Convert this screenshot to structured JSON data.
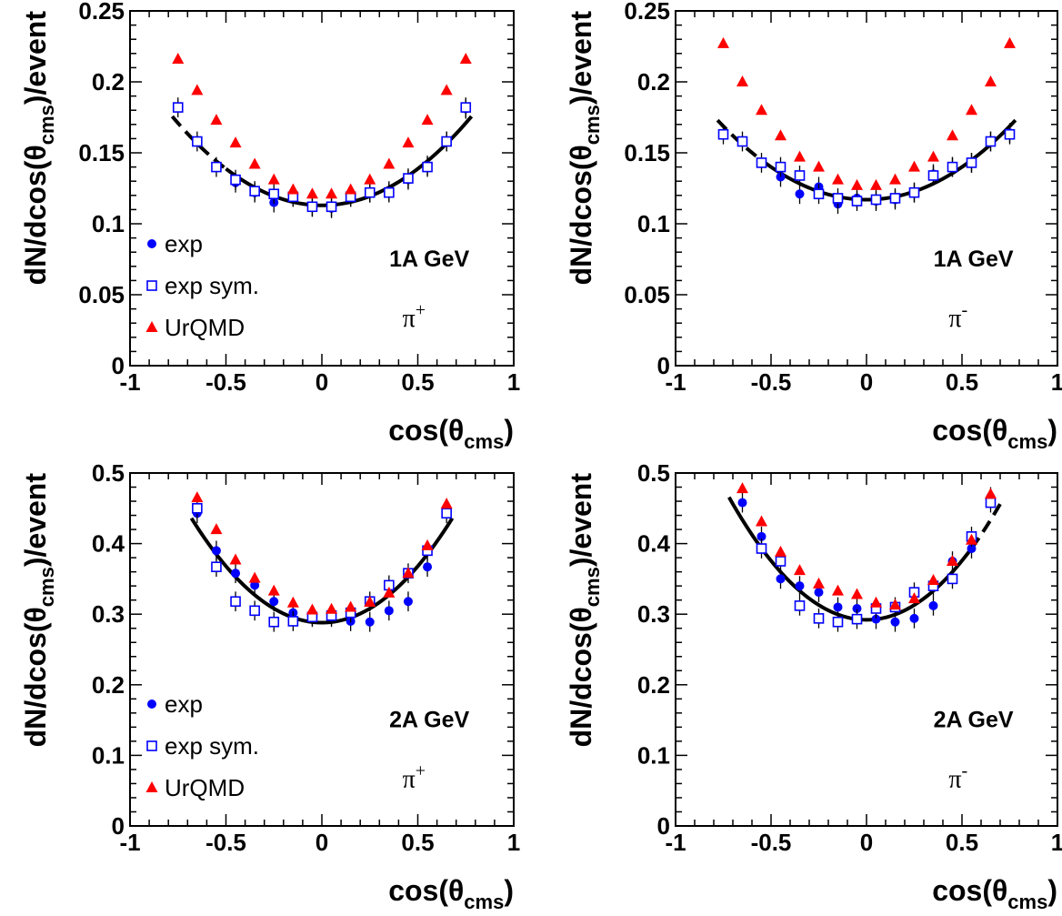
{
  "chart_data": [
    {
      "type": "scatter",
      "energy_label": "1A GeV",
      "particle": "π",
      "particle_sup": "+",
      "xlabel": "cos(θ",
      "xlabel_sub": "cms",
      "xlabel_close": ")",
      "ylabel": "dN/dcos(θ",
      "ylabel_sub": "cms",
      "ylabel_close": ")/event",
      "xlim": [
        -1,
        1
      ],
      "ylim": [
        0,
        0.25
      ],
      "xticks": [
        "-1",
        "-0.5",
        "0",
        "0.5",
        "1"
      ],
      "yticks": [
        "0",
        "0.05",
        "0.1",
        "0.15",
        "0.2",
        "0.25"
      ],
      "legend": {
        "position": "left",
        "entries": [
          "exp",
          "exp sym.",
          "UrQMD"
        ]
      },
      "fit": {
        "label": "",
        "c0": 0.113,
        "c2": 0.103,
        "xrange": [
          -0.78,
          0.78
        ],
        "dashed_below": -0.5,
        "dashed_above": null
      },
      "series": [
        {
          "name": "exp",
          "marker": "circle",
          "color": "#0000ff",
          "x": [
            -0.45,
            -0.35,
            -0.25,
            -0.15,
            -0.05,
            0.05,
            0.15,
            0.25,
            0.35,
            0.45,
            0.55,
            0.65,
            0.75
          ],
          "y": [
            0.129,
            0.122,
            0.115,
            0.119,
            0.112,
            0.111,
            0.119,
            0.122,
            0.123,
            0.131,
            0.141,
            0.158,
            0.181
          ]
        },
        {
          "name": "exp sym.",
          "marker": "open-square",
          "color": "#0000ff",
          "x": [
            -0.75,
            -0.65,
            -0.55,
            -0.45,
            -0.35,
            -0.25,
            -0.15,
            -0.05,
            0.05,
            0.15,
            0.25,
            0.35,
            0.45,
            0.55,
            0.65,
            0.75
          ],
          "y": [
            0.182,
            0.158,
            0.14,
            0.131,
            0.123,
            0.121,
            0.119,
            0.112,
            0.112,
            0.119,
            0.122,
            0.122,
            0.132,
            0.14,
            0.158,
            0.182
          ]
        },
        {
          "name": "UrQMD",
          "marker": "triangle",
          "color": "#ff0000",
          "x": [
            -0.75,
            -0.65,
            -0.55,
            -0.45,
            -0.35,
            -0.25,
            -0.15,
            -0.05,
            0.05,
            0.15,
            0.25,
            0.35,
            0.45,
            0.55,
            0.65,
            0.75
          ],
          "y": [
            0.216,
            0.194,
            0.173,
            0.157,
            0.142,
            0.131,
            0.124,
            0.121,
            0.121,
            0.124,
            0.131,
            0.142,
            0.157,
            0.173,
            0.194,
            0.216
          ]
        }
      ]
    },
    {
      "type": "scatter",
      "energy_label": "1A GeV",
      "particle": "π",
      "particle_sup": "-",
      "xlabel": "cos(θ",
      "xlabel_sub": "cms",
      "xlabel_close": ")",
      "ylabel": "dN/dcos(θ",
      "ylabel_sub": "cms",
      "ylabel_close": ")/event",
      "xlim": [
        -1,
        1
      ],
      "ylim": [
        0,
        0.25
      ],
      "xticks": [
        "-1",
        "-0.5",
        "0",
        "0.5",
        "1"
      ],
      "yticks": [
        "0",
        "0.05",
        "0.1",
        "0.15",
        "0.2",
        "0.25"
      ],
      "legend": null,
      "fit": {
        "label": "",
        "c0": 0.117,
        "c2": 0.092,
        "xrange": [
          -0.78,
          0.78
        ],
        "dashed_below": -0.5,
        "dashed_above": null
      },
      "series": [
        {
          "name": "exp",
          "marker": "circle",
          "color": "#0000ff",
          "x": [
            -0.45,
            -0.35,
            -0.25,
            -0.15,
            -0.05,
            0.05,
            0.15,
            0.25,
            0.35,
            0.45,
            0.55,
            0.65,
            0.75
          ],
          "y": [
            0.133,
            0.121,
            0.126,
            0.114,
            0.118,
            0.116,
            0.117,
            0.122,
            0.135,
            0.14,
            0.143,
            0.158,
            0.164
          ]
        },
        {
          "name": "exp sym.",
          "marker": "open-square",
          "color": "#0000ff",
          "x": [
            -0.75,
            -0.65,
            -0.55,
            -0.45,
            -0.35,
            -0.25,
            -0.15,
            -0.05,
            0.05,
            0.15,
            0.25,
            0.35,
            0.45,
            0.55,
            0.65,
            0.75
          ],
          "y": [
            0.163,
            0.158,
            0.143,
            0.14,
            0.134,
            0.121,
            0.118,
            0.116,
            0.117,
            0.118,
            0.122,
            0.134,
            0.14,
            0.143,
            0.158,
            0.163
          ]
        },
        {
          "name": "UrQMD",
          "marker": "triangle",
          "color": "#ff0000",
          "x": [
            -0.75,
            -0.65,
            -0.55,
            -0.45,
            -0.35,
            -0.25,
            -0.15,
            -0.05,
            0.05,
            0.15,
            0.25,
            0.35,
            0.45,
            0.55,
            0.65,
            0.75
          ],
          "y": [
            0.227,
            0.2,
            0.18,
            0.162,
            0.147,
            0.14,
            0.131,
            0.127,
            0.127,
            0.131,
            0.14,
            0.147,
            0.162,
            0.18,
            0.2,
            0.227
          ]
        }
      ]
    },
    {
      "type": "scatter",
      "energy_label": "2A GeV",
      "particle": "π",
      "particle_sup": "+",
      "xlabel": "cos(θ",
      "xlabel_sub": "cms",
      "xlabel_close": ")",
      "ylabel": "dN/dcos(θ",
      "ylabel_sub": "cms",
      "ylabel_close": ")/event",
      "xlim": [
        -1,
        1
      ],
      "ylim": [
        0,
        0.5
      ],
      "xticks": [
        "-1",
        "-0.5",
        "0",
        "0.5",
        "1"
      ],
      "yticks": [
        "0",
        "0.1",
        "0.2",
        "0.3",
        "0.4",
        "0.5"
      ],
      "legend": {
        "position": "left",
        "entries": [
          "exp",
          "exp sym.",
          "UrQMD"
        ]
      },
      "fit": {
        "label": "",
        "c0": 0.288,
        "c2": 0.32,
        "xrange": [
          -0.68,
          0.68
        ],
        "dashed_below": null,
        "dashed_above": null
      },
      "series": [
        {
          "name": "exp",
          "marker": "circle",
          "color": "#0000ff",
          "x": [
            -0.65,
            -0.55,
            -0.45,
            -0.35,
            -0.25,
            -0.15,
            -0.05,
            0.05,
            0.15,
            0.25,
            0.35,
            0.45,
            0.55,
            0.65
          ],
          "y": [
            0.443,
            0.39,
            0.358,
            0.341,
            0.318,
            0.302,
            0.298,
            0.296,
            0.29,
            0.289,
            0.305,
            0.318,
            0.367,
            0.45
          ]
        },
        {
          "name": "exp sym.",
          "marker": "open-square",
          "color": "#0000ff",
          "x": [
            -0.65,
            -0.55,
            -0.45,
            -0.35,
            -0.25,
            -0.15,
            -0.05,
            0.05,
            0.15,
            0.25,
            0.35,
            0.45,
            0.55,
            0.65
          ],
          "y": [
            0.45,
            0.367,
            0.318,
            0.305,
            0.289,
            0.29,
            0.296,
            0.298,
            0.302,
            0.318,
            0.341,
            0.358,
            0.39,
            0.443
          ]
        },
        {
          "name": "UrQMD",
          "marker": "triangle",
          "color": "#ff0000",
          "x": [
            -0.65,
            -0.55,
            -0.45,
            -0.35,
            -0.25,
            -0.15,
            -0.05,
            0.05,
            0.15,
            0.25,
            0.35,
            0.45,
            0.55,
            0.65
          ],
          "y": [
            0.465,
            0.42,
            0.377,
            0.351,
            0.333,
            0.316,
            0.306,
            0.307,
            0.31,
            0.317,
            0.33,
            0.358,
            0.397,
            0.456
          ]
        }
      ]
    },
    {
      "type": "scatter",
      "energy_label": "2A GeV",
      "particle": "π",
      "particle_sup": "-",
      "xlabel": "cos(θ",
      "xlabel_sub": "cms",
      "xlabel_close": ")",
      "ylabel": "dN/dcos(θ",
      "ylabel_sub": "cms",
      "ylabel_close": ")/event",
      "xlim": [
        -1,
        1
      ],
      "ylim": [
        0,
        0.5
      ],
      "xticks": [
        "-1",
        "-0.5",
        "0",
        "0.5",
        "1"
      ],
      "yticks": [
        "0",
        "0.1",
        "0.2",
        "0.3",
        "0.4",
        "0.5"
      ],
      "legend": null,
      "fit": {
        "label": "",
        "c0": 0.292,
        "c2": 0.335,
        "xrange": [
          -0.72,
          0.7
        ],
        "dashed_below": null,
        "dashed_above": 0.55
      },
      "series": [
        {
          "name": "exp",
          "marker": "circle",
          "color": "#0000ff",
          "x": [
            -0.65,
            -0.55,
            -0.45,
            -0.35,
            -0.25,
            -0.15,
            -0.05,
            0.05,
            0.15,
            0.25,
            0.35,
            0.45,
            0.55,
            0.65
          ],
          "y": [
            0.458,
            0.41,
            0.35,
            0.34,
            0.331,
            0.31,
            0.308,
            0.293,
            0.289,
            0.294,
            0.312,
            0.375,
            0.393,
            0.466
          ]
        },
        {
          "name": "exp sym.",
          "marker": "open-square",
          "color": "#0000ff",
          "x": [
            -0.55,
            -0.45,
            -0.35,
            -0.25,
            -0.15,
            -0.05,
            0.05,
            0.15,
            0.25,
            0.35,
            0.45,
            0.55,
            0.65
          ],
          "y": [
            0.393,
            0.375,
            0.312,
            0.294,
            0.289,
            0.293,
            0.308,
            0.31,
            0.331,
            0.34,
            0.35,
            0.41,
            0.458
          ]
        },
        {
          "name": "UrQMD",
          "marker": "triangle",
          "color": "#ff0000",
          "x": [
            -0.65,
            -0.55,
            -0.45,
            -0.35,
            -0.25,
            -0.15,
            -0.05,
            0.05,
            0.15,
            0.25,
            0.35,
            0.45,
            0.55,
            0.65
          ],
          "y": [
            0.478,
            0.431,
            0.388,
            0.362,
            0.343,
            0.333,
            0.328,
            0.316,
            0.313,
            0.322,
            0.348,
            0.375,
            0.405,
            0.47
          ]
        }
      ]
    }
  ]
}
